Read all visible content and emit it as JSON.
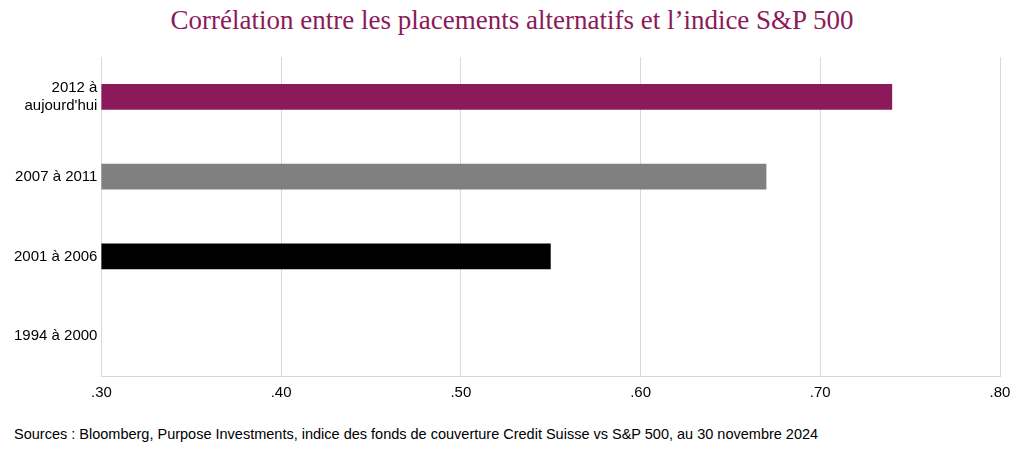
{
  "chart_data": {
    "type": "bar",
    "orientation": "horizontal",
    "title": "Corrélation entre les placements alternatifs et l’indice S&P 500",
    "source": "Sources : Bloomberg, Purpose Investments, indice des fonds de couverture Credit Suisse vs S&P 500, au 30 novembre 2024",
    "categories": [
      "2012 à aujourd'hui",
      "2007 à 2011",
      "2001 à 2006",
      "1994 à 2000"
    ],
    "values": [
      0.74,
      0.67,
      0.55,
      null
    ],
    "colors": [
      "#8b1a5a",
      "#808080",
      "#000000",
      "#000000"
    ],
    "xlim": [
      0.3,
      0.8
    ],
    "xticks": [
      {
        "value": 0.3,
        "label": ".30"
      },
      {
        "value": 0.4,
        "label": ".40"
      },
      {
        "value": 0.5,
        "label": ".50"
      },
      {
        "value": 0.6,
        "label": ".60"
      },
      {
        "value": 0.7,
        "label": ".70"
      },
      {
        "value": 0.8,
        "label": ".80"
      }
    ],
    "grid": true,
    "legend": false,
    "data_labels": false
  }
}
